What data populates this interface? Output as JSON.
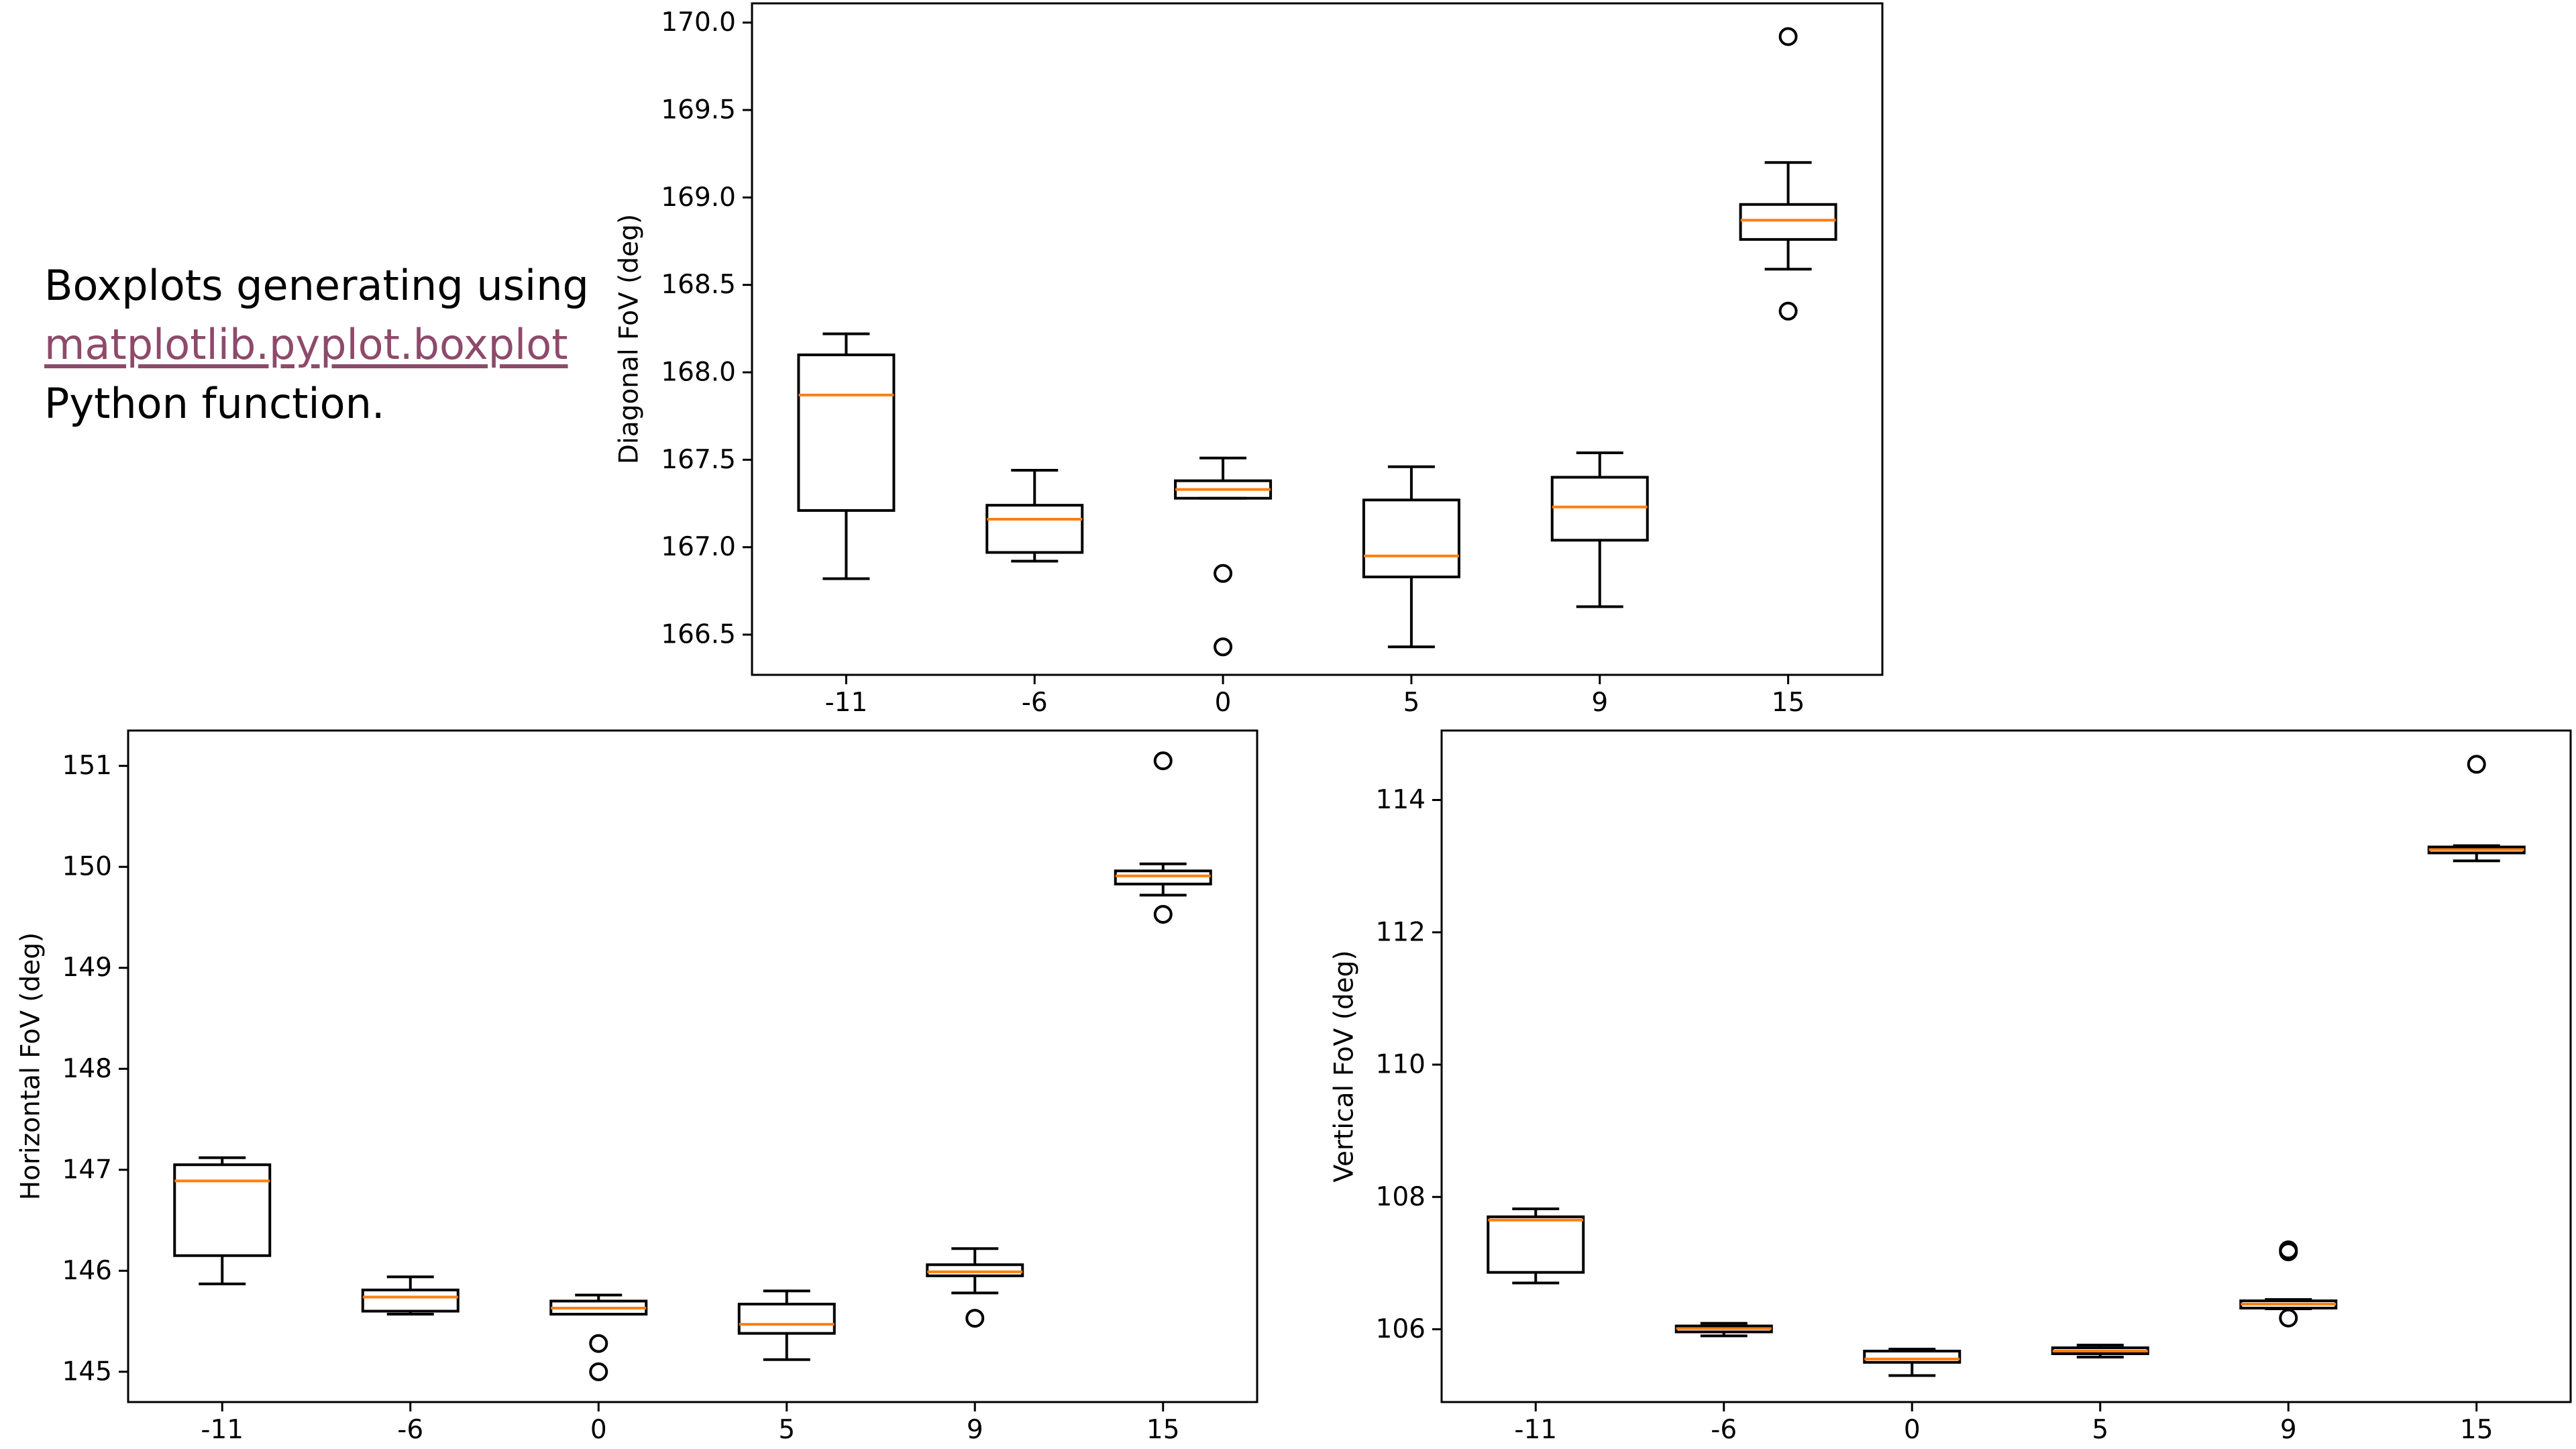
{
  "caption": {
    "line1": "Boxplots generating using",
    "link": "matplotlib.pyplot.boxplot",
    "line3": "Python function."
  },
  "colors": {
    "box": "#000000",
    "median": "#ff7f0e",
    "link": "#8e4a6a",
    "background": "#ffffff"
  },
  "chart_data": [
    {
      "type": "box",
      "xlabel": "",
      "ylabel": "Diagonal FoV (deg)",
      "ylim": [
        166.27,
        170.11
      ],
      "yticks": [
        166.5,
        167.0,
        167.5,
        168.0,
        168.5,
        169.0,
        169.5,
        170.0
      ],
      "ytick_labels": [
        "166.5",
        "167.0",
        "167.5",
        "168.0",
        "168.5",
        "169.0",
        "169.5",
        "170.0"
      ],
      "categories": [
        "-11",
        "-6",
        "0",
        "5",
        "9",
        "15"
      ],
      "boxes": [
        {
          "whislo": 166.82,
          "q1": 167.21,
          "med": 167.87,
          "q3": 168.1,
          "whishi": 168.22,
          "fliers": []
        },
        {
          "whislo": 166.92,
          "q1": 166.97,
          "med": 167.16,
          "q3": 167.24,
          "whishi": 167.44,
          "fliers": []
        },
        {
          "whislo": 167.28,
          "q1": 167.28,
          "med": 167.33,
          "q3": 167.38,
          "whishi": 167.51,
          "fliers": [
            166.85,
            166.43
          ]
        },
        {
          "whislo": 166.43,
          "q1": 166.83,
          "med": 166.95,
          "q3": 167.27,
          "whishi": 167.46,
          "fliers": []
        },
        {
          "whislo": 166.66,
          "q1": 167.04,
          "med": 167.23,
          "q3": 167.4,
          "whishi": 167.54,
          "fliers": []
        },
        {
          "whislo": 168.59,
          "q1": 168.76,
          "med": 168.87,
          "q3": 168.96,
          "whishi": 169.2,
          "fliers": [
            169.92,
            168.35
          ]
        }
      ]
    },
    {
      "type": "box",
      "xlabel": "",
      "ylabel": "Horizontal FoV (deg)",
      "ylim": [
        144.7,
        151.35
      ],
      "yticks": [
        145,
        146,
        147,
        148,
        149,
        150,
        151
      ],
      "ytick_labels": [
        "145",
        "146",
        "147",
        "148",
        "149",
        "150",
        "151"
      ],
      "categories": [
        "-11",
        "-6",
        "0",
        "5",
        "9",
        "15"
      ],
      "boxes": [
        {
          "whislo": 145.87,
          "q1": 146.15,
          "med": 146.89,
          "q3": 147.05,
          "whishi": 147.12,
          "fliers": []
        },
        {
          "whislo": 145.57,
          "q1": 145.6,
          "med": 145.74,
          "q3": 145.81,
          "whishi": 145.94,
          "fliers": []
        },
        {
          "whislo": 145.57,
          "q1": 145.57,
          "med": 145.63,
          "q3": 145.7,
          "whishi": 145.76,
          "fliers": [
            145.28,
            145.0
          ]
        },
        {
          "whislo": 145.12,
          "q1": 145.38,
          "med": 145.47,
          "q3": 145.67,
          "whishi": 145.8,
          "fliers": []
        },
        {
          "whislo": 145.78,
          "q1": 145.95,
          "med": 145.99,
          "q3": 146.06,
          "whishi": 146.22,
          "fliers": [
            145.53
          ]
        },
        {
          "whislo": 149.72,
          "q1": 149.83,
          "med": 149.91,
          "q3": 149.96,
          "whishi": 150.03,
          "fliers": [
            151.05,
            149.53
          ]
        }
      ]
    },
    {
      "type": "box",
      "xlabel": "",
      "ylabel": "Vertical FoV (deg)",
      "ylim": [
        104.9,
        115.05
      ],
      "yticks": [
        106,
        108,
        110,
        112,
        114
      ],
      "ytick_labels": [
        "106",
        "108",
        "110",
        "112",
        "114"
      ],
      "categories": [
        "-11",
        "-6",
        "0",
        "5",
        "9",
        "15"
      ],
      "boxes": [
        {
          "whislo": 106.7,
          "q1": 106.86,
          "med": 107.65,
          "q3": 107.7,
          "whishi": 107.82,
          "fliers": []
        },
        {
          "whislo": 105.9,
          "q1": 105.96,
          "med": 106.01,
          "q3": 106.05,
          "whishi": 106.09,
          "fliers": []
        },
        {
          "whislo": 105.3,
          "q1": 105.5,
          "med": 105.55,
          "q3": 105.67,
          "whishi": 105.7,
          "fliers": []
        },
        {
          "whislo": 105.58,
          "q1": 105.63,
          "med": 105.67,
          "q3": 105.72,
          "whishi": 105.76,
          "fliers": []
        },
        {
          "whislo": 106.31,
          "q1": 106.32,
          "med": 106.38,
          "q3": 106.43,
          "whishi": 106.45,
          "fliers": [
            107.17,
            107.2,
            106.17
          ]
        },
        {
          "whislo": 113.08,
          "q1": 113.2,
          "med": 113.25,
          "q3": 113.29,
          "whishi": 113.31,
          "fliers": [
            114.54
          ]
        }
      ]
    }
  ]
}
